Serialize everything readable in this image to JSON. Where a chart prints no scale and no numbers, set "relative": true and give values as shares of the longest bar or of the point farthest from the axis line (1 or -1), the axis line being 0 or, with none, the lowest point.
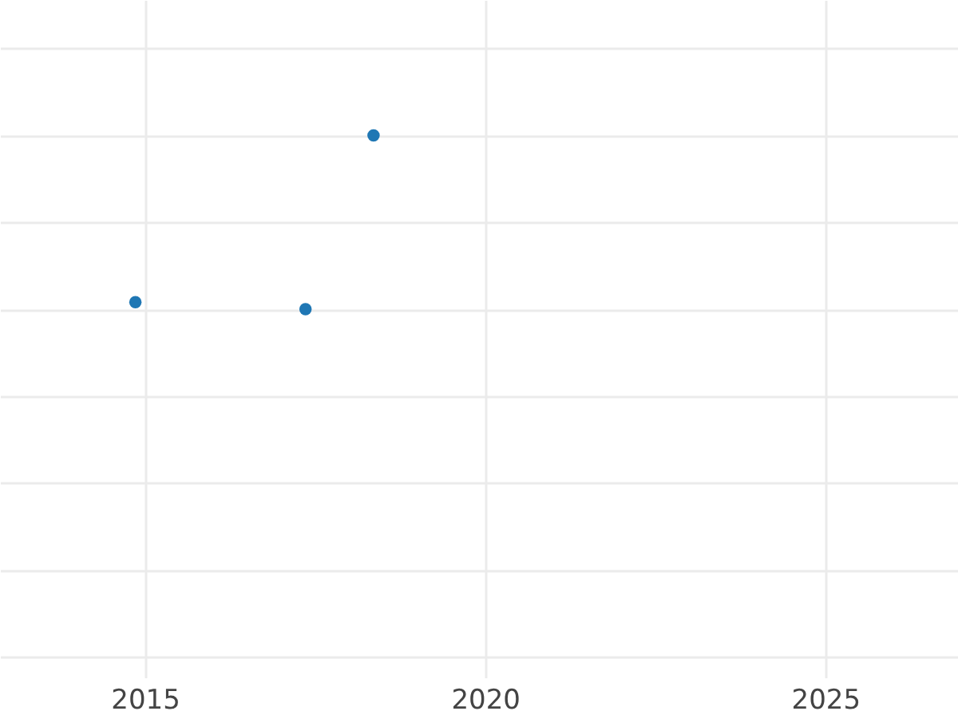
{
  "chart_data": {
    "type": "scatter",
    "x": [
      2014.86,
      2017.36,
      2018.36
    ],
    "relative": true,
    "series": [
      {
        "color": "#1f77b4",
        "values": [
          0.04,
          0,
          1
        ]
      }
    ],
    "xlim": [
      2012.87,
      2026.95
    ],
    "xticks": [
      2015,
      2020,
      2025
    ],
    "grid": true,
    "marker": "circle"
  }
}
